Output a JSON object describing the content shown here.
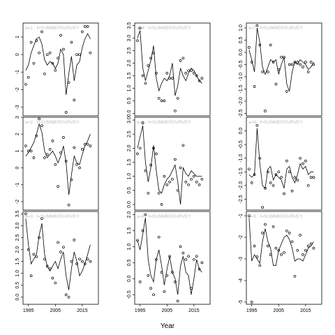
{
  "figure": {
    "xlabel": "Year",
    "x_ticks": [
      1995,
      2005,
      2015
    ],
    "x_tick_labels": [
      "1995",
      "2005",
      "2015"
    ]
  },
  "chart_data": [
    {
      "type": "scatter",
      "panel": "a=1 : f=SUMMERSURVEY",
      "strip_label": "a=1  :  f=SUMMERSURVEY",
      "xlim": [
        1993,
        2021
      ],
      "ylim": [
        -3.5,
        1.8
      ],
      "grid": false,
      "yticks": [
        1,
        0,
        -1,
        -2,
        -3
      ],
      "ytick_labels": [
        "1",
        "0",
        "-1",
        "-2",
        "-3"
      ],
      "x": [
        1994,
        1995,
        1996,
        1997,
        1998,
        1999,
        2000,
        2001,
        2002,
        2003,
        2004,
        2005,
        2006,
        2007,
        2008,
        2009,
        2010,
        2011,
        2012,
        2013,
        2014,
        2015,
        2016,
        2017,
        2018
      ],
      "points": [
        -1.7,
        -1.3,
        0.7,
        -0.5,
        0.8,
        0.1,
        1.3,
        -1.1,
        0.0,
        0.1,
        -0.5,
        -0.9,
        -0.2,
        1.1,
        0.3,
        -3.3,
        -1.6,
        0.7,
        -2.6,
        0.0,
        0.0,
        1.3,
        1.6,
        1.6,
        0.1
      ],
      "fit": [
        -0.9,
        -0.6,
        0.1,
        0.5,
        0.9,
        1.0,
        0.6,
        -0.3,
        -0.6,
        -0.4,
        -0.5,
        -0.8,
        -0.5,
        0.3,
        0.0,
        -2.3,
        -1.1,
        -0.1,
        -1.5,
        -0.6,
        -0.4,
        0.4,
        0.9,
        1.2,
        0.9
      ]
    },
    {
      "type": "scatter",
      "panel": "a=2 : f=SUMMERSURVEY",
      "strip_label": "a=2  :  f=SUMMERSURVEY",
      "xlim": [
        1993,
        2021
      ],
      "ylim": [
        -2.5,
        3.0
      ],
      "grid": false,
      "yticks": [
        3,
        2,
        1,
        0,
        -1,
        -2
      ],
      "ytick_labels": [
        "3",
        "2",
        "1",
        "0",
        "-1",
        "-2"
      ],
      "x": [
        1994,
        1995,
        1996,
        1997,
        1998,
        1999,
        2000,
        2001,
        2002,
        2003,
        2004,
        2005,
        2006,
        2007,
        2008,
        2009,
        2010,
        2011,
        2012,
        2013,
        2014,
        2015,
        2016,
        2017,
        2018
      ],
      "points": [
        1.3,
        1.0,
        1.0,
        0.6,
        1.9,
        2.9,
        2.5,
        0.6,
        0.8,
        1.1,
        1.6,
        0.2,
        -1.1,
        0.9,
        1.8,
        0.4,
        -2.2,
        -0.7,
        1.2,
        0.2,
        0.0,
        1.1,
        1.4,
        1.4,
        1.3
      ],
      "fit": [
        0.7,
        0.9,
        1.2,
        1.5,
        2.0,
        2.6,
        2.1,
        1.0,
        0.6,
        0.8,
        1.0,
        0.7,
        0.3,
        0.7,
        1.3,
        0.3,
        -1.6,
        -0.4,
        0.7,
        0.3,
        0.2,
        0.8,
        1.3,
        1.6,
        2.0
      ]
    },
    {
      "type": "scatter",
      "panel": "a=3 : f=SUMMERSURVEY",
      "strip_label": "a=3  :  f=SUMMERSURVEY",
      "xlim": [
        1993,
        2021
      ],
      "ylim": [
        -0.3,
        3.6
      ],
      "grid": false,
      "yticks": [
        3.5,
        3.0,
        2.5,
        2.0,
        1.5,
        1.0,
        0.5,
        0.0
      ],
      "ytick_labels": [
        "3.5",
        "3.0",
        "2.5",
        "2.0",
        "1.5",
        "1.0",
        "0.5",
        "0.0"
      ],
      "x": [
        1994,
        1995,
        1996,
        1997,
        1998,
        1999,
        2000,
        2001,
        2002,
        2003,
        2004,
        2005,
        2006,
        2007,
        2008,
        2009,
        2010,
        2011,
        2012,
        2013,
        2014,
        2015,
        2016,
        2017,
        2018
      ],
      "points": [
        3.5,
        2.0,
        0.9,
        1.8,
        1.7,
        2.5,
        3.3,
        1.6,
        1.3,
        1.2,
        0.8,
        0.6,
        2.3,
        1.9,
        2.1,
        0.1,
        0.0,
        1.5,
        2.4,
        1.4,
        1.6,
        1.5,
        1.4,
        1.6,
        1.5
      ],
      "fit": [
        3.3,
        2.2,
        1.4,
        1.6,
        1.8,
        2.6,
        3.1,
        1.8,
        1.3,
        1.1,
        1.3,
        1.5,
        1.2,
        1.6,
        1.9,
        0.9,
        0.3,
        1.2,
        1.9,
        1.5,
        0.9,
        1.1,
        1.4,
        1.8,
        2.2
      ]
    },
    {
      "type": "scatter",
      "panel": "a=4 : f=SUMMERSURVEY",
      "strip_label": "a=4  :  f=SUMMERSURVEY",
      "xlim": [
        1993,
        2021
      ],
      "ylim": [
        -0.1,
        3.6
      ],
      "grid": false,
      "yticks": [
        3.5,
        3.0,
        2.5,
        2.0,
        1.5,
        1.0,
        0.5,
        0.0
      ],
      "ytick_labels": [
        "3.5",
        "3.0",
        "2.5",
        "2.0",
        "1.5",
        "1.0",
        "0.5",
        "0.0"
      ],
      "x": [
        1994,
        1995,
        1996,
        1997,
        1998,
        1999,
        2000,
        2001,
        2002,
        2003,
        2004,
        2005,
        2006,
        2007,
        2008,
        2009,
        2010,
        2011,
        2012,
        2013,
        2014,
        2015,
        2016,
        2017,
        2018
      ],
      "points": [
        2.9,
        3.4,
        1.5,
        1.2,
        1.9,
        2.2,
        2.4,
        1.6,
        0.6,
        0.5,
        0.5,
        1.6,
        1.4,
        1.4,
        0.1,
        0.6,
        2.1,
        2.2,
        1.6,
        1.7,
        1.7,
        1.6,
        1.5,
        1.3,
        1.4
      ],
      "fit": [
        3.0,
        3.3,
        1.8,
        1.3,
        1.7,
        2.1,
        2.7,
        1.4,
        0.9,
        1.2,
        1.4,
        1.3,
        1.5,
        2.0,
        0.7,
        1.1,
        1.8,
        1.5,
        1.3,
        1.6,
        1.8,
        1.7,
        1.5,
        1.3,
        1.2
      ]
    },
    {
      "type": "scatter",
      "panel": "a=5 : f=SUMMERSURVEY",
      "strip_label": "a=5  :  f=SUMMERSURVEY",
      "xlim": [
        1993,
        2021
      ],
      "ylim": [
        -0.2,
        3.1
      ],
      "grid": false,
      "yticks": [
        3.0,
        2.5,
        2.0,
        1.5,
        1.0,
        0.5,
        0.0
      ],
      "ytick_labels": [
        "3.0",
        "2.5",
        "2.0",
        "1.5",
        "1.0",
        "0.5",
        "0.0"
      ],
      "x": [
        1994,
        1995,
        1996,
        1997,
        1998,
        1999,
        2000,
        2001,
        2002,
        2003,
        2004,
        2005,
        2006,
        2007,
        2008,
        2009,
        2010,
        2011,
        2012,
        2013,
        2014,
        2015,
        2016,
        2017,
        2018
      ],
      "points": [
        1.8,
        2.0,
        2.9,
        1.2,
        0.4,
        1.4,
        2.0,
        1.8,
        0.4,
        0.0,
        1.0,
        0.7,
        0.8,
        0.9,
        1.6,
        0.5,
        1.3,
        2.1,
        0.8,
        0.7,
        0.9,
        1.0,
        0.8,
        0.7,
        0.9
      ],
      "fit": [
        2.0,
        2.4,
        2.8,
        1.5,
        0.8,
        1.3,
        2.1,
        1.2,
        0.5,
        0.4,
        0.7,
        0.9,
        1.0,
        1.2,
        1.4,
        0.8,
        0.0,
        1.3,
        1.1,
        1.0,
        1.2,
        1.1,
        1.0,
        1.0,
        1.0
      ]
    },
    {
      "type": "scatter",
      "panel": "a=6 : f=SUMMERSURVEY",
      "strip_label": "a=6  :  f=SUMMERSURVEY",
      "xlim": [
        1993,
        2021
      ],
      "ylim": [
        -0.8,
        2.1
      ],
      "grid": false,
      "yticks": [
        2.0,
        1.5,
        1.0,
        0.5,
        0.0,
        -0.5
      ],
      "ytick_labels": [
        "2.0",
        "1.5",
        "1.0",
        "0.5",
        "0.0",
        "-0.5"
      ],
      "x": [
        1994,
        1995,
        1996,
        1997,
        1998,
        1999,
        2000,
        2001,
        2002,
        2003,
        2004,
        2005,
        2006,
        2007,
        2008,
        2009,
        2010,
        2011,
        2012,
        2013,
        2014,
        2015,
        2016,
        2017,
        2018
      ],
      "points": [
        1.2,
        -0.1,
        1.5,
        2.0,
        0.1,
        -0.3,
        -0.5,
        0.6,
        1.3,
        0.2,
        -0.4,
        0.1,
        0.7,
        0.2,
        -0.1,
        -0.7,
        1.0,
        0.8,
        0.6,
        0.7,
        -0.3,
        0.6,
        0.7,
        0.3,
        0.5
      ],
      "fit": [
        1.2,
        0.9,
        1.4,
        1.9,
        0.6,
        0.1,
        -0.1,
        0.6,
        0.9,
        0.4,
        -0.2,
        0.3,
        0.7,
        0.2,
        0.0,
        -0.5,
        0.4,
        0.7,
        0.2,
        0.1,
        -0.5,
        0.0,
        0.6,
        0.3,
        0.2
      ]
    },
    {
      "type": "scatter",
      "panel": "a=7 : f=SUMMERSURVEY",
      "strip_label": "a=7  :  f=SUMMERSURVEY",
      "xlim": [
        1993,
        2021
      ],
      "ylim": [
        -2.6,
        1.2
      ],
      "grid": false,
      "yticks": [
        1.0,
        0.5,
        0.0,
        -0.5,
        -1.0,
        -1.5,
        -2.0,
        -2.5
      ],
      "ytick_labels": [
        "1.0",
        "0.5",
        "0.0",
        "-0.5",
        "-1.0",
        "-1.5",
        "-2.0",
        "-2.5"
      ],
      "x": [
        1994,
        1995,
        1996,
        1997,
        1998,
        1999,
        2000,
        2001,
        2002,
        2003,
        2004,
        2005,
        2006,
        2007,
        2008,
        2009,
        2010,
        2011,
        2012,
        2013,
        2014,
        2015,
        2016,
        2017,
        2018
      ],
      "points": [
        0.2,
        -0.4,
        -1.4,
        1.1,
        0.3,
        -0.8,
        -2.4,
        -0.8,
        0.3,
        -0.4,
        -1.3,
        -0.7,
        -0.2,
        -0.2,
        -1.6,
        -0.5,
        -0.5,
        -0.4,
        -0.4,
        -0.5,
        -0.6,
        -0.4,
        -0.8,
        -0.4,
        -0.5
      ],
      "fit": [
        0.1,
        -0.3,
        -0.8,
        1.0,
        0.4,
        -0.6,
        -0.9,
        -0.6,
        -0.3,
        -0.4,
        -0.3,
        -0.9,
        -0.5,
        -0.2,
        -1.3,
        -1.6,
        -0.8,
        -0.4,
        -0.5,
        -0.3,
        -0.4,
        -0.5,
        -0.7,
        -0.6,
        -0.4
      ]
    },
    {
      "type": "scatter",
      "panel": "a=8 : f=SUMMERSURVEY",
      "strip_label": "a=8  :  f=SUMMERSURVEY",
      "xlim": [
        1993,
        2021
      ],
      "ylim": [
        -2.9,
        0.5
      ],
      "grid": false,
      "yticks": [
        0.0,
        -0.5,
        -1.0,
        -1.5,
        -2.0,
        -2.5
      ],
      "ytick_labels": [
        "0.0",
        "-0.5",
        "-1.0",
        "-1.5",
        "-2.0",
        "-2.5"
      ],
      "x": [
        1994,
        1995,
        1996,
        1997,
        1998,
        1999,
        2000,
        2001,
        2002,
        2003,
        2004,
        2005,
        2006,
        2007,
        2008,
        2009,
        2010,
        2011,
        2012,
        2013,
        2014,
        2015,
        2016,
        2017,
        2018
      ],
      "points": [
        -1.4,
        -1.9,
        -1.6,
        0.2,
        -1.0,
        -2.8,
        -2.1,
        -1.5,
        -1.9,
        -2.0,
        -1.6,
        -1.5,
        -1.7,
        -2.3,
        -1.1,
        -1.5,
        -2.2,
        -1.7,
        -1.8,
        -1.0,
        -1.2,
        -1.1,
        -2.0,
        -1.7,
        -1.7
      ],
      "fit": [
        -1.6,
        -1.7,
        -1.6,
        0.1,
        -1.2,
        -2.0,
        -2.1,
        -1.4,
        -1.3,
        -1.8,
        -1.6,
        -1.7,
        -1.8,
        -2.1,
        -1.4,
        -1.3,
        -1.7,
        -1.9,
        -1.6,
        -1.2,
        -1.4,
        -1.3,
        -1.6,
        -1.5,
        -1.5
      ]
    },
    {
      "type": "scatter",
      "panel": "a=9 : f=SUMMERSURVEY",
      "strip_label": "a=9  :  f=SUMMERSURVEY",
      "xlim": [
        1993,
        2021
      ],
      "ylim": [
        -5.1,
        -0.8
      ],
      "grid": false,
      "yticks": [
        -1,
        -2,
        -3,
        -4,
        -5
      ],
      "ytick_labels": [
        "-1",
        "-2",
        "-3",
        "-4",
        "-5"
      ],
      "x": [
        1994,
        1995,
        1996,
        1997,
        1998,
        1999,
        2000,
        2001,
        2002,
        2003,
        2004,
        2005,
        2006,
        2007,
        2008,
        2009,
        2010,
        2011,
        2012,
        2013,
        2014,
        2015,
        2016,
        2017,
        2018
      ],
      "points": [
        -1.0,
        -5.0,
        -2.4,
        -2.9,
        -3.3,
        -1.8,
        -1.4,
        -2.4,
        -2.8,
        -1.5,
        -2.5,
        -2.6,
        -2.8,
        -2.7,
        -1.7,
        -1.8,
        -2.2,
        -3.8,
        -2.6,
        -1.9,
        -2.8,
        -2.6,
        -2.4,
        -2.3,
        -2.5
      ],
      "fit": [
        -1.1,
        -3.1,
        -2.8,
        -3.0,
        -3.2,
        -2.2,
        -1.6,
        -2.2,
        -2.5,
        -3.3,
        -3.3,
        -2.6,
        -2.3,
        -2.0,
        -1.9,
        -2.1,
        -2.5,
        -3.1,
        -3.0,
        -3.0,
        -3.1,
        -2.8,
        -2.5,
        -2.4,
        -2.2
      ]
    }
  ]
}
